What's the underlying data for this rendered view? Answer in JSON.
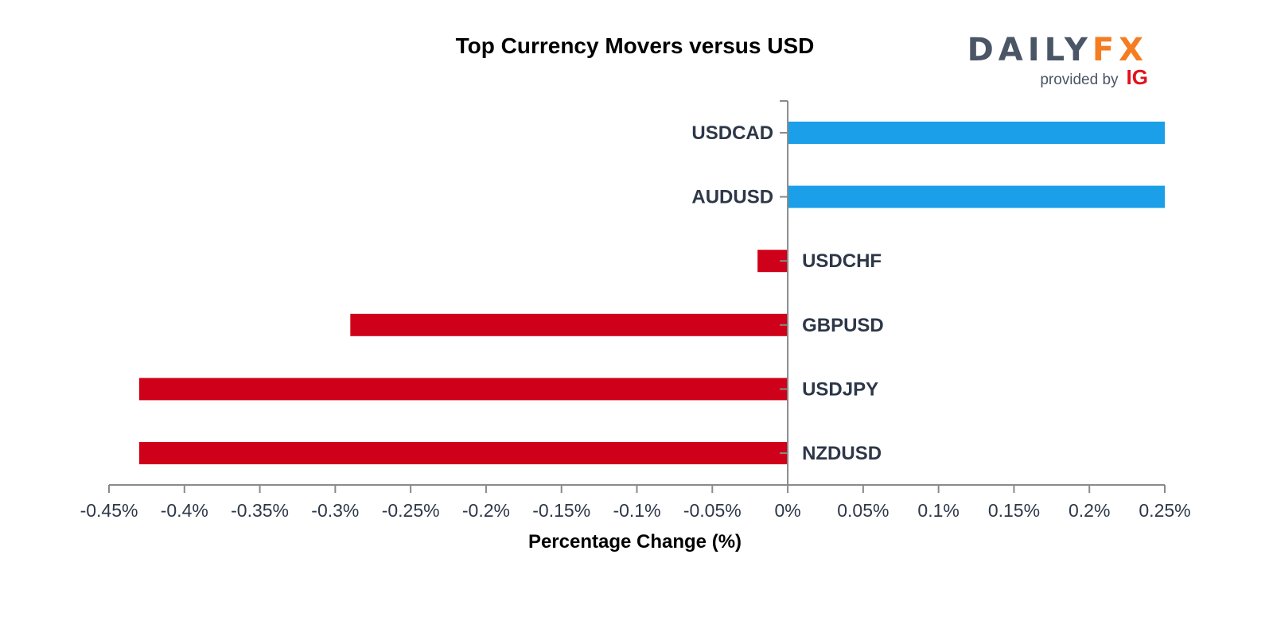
{
  "chart_data": {
    "type": "bar",
    "orientation": "horizontal",
    "title": "Top Currency Movers versus USD",
    "xlabel": "Percentage Change (%)",
    "ylabel": "",
    "xlim": [
      -0.45,
      0.25
    ],
    "categories": [
      "USDCAD",
      "AUDUSD",
      "USDCHF",
      "GBPUSD",
      "USDJPY",
      "NZDUSD"
    ],
    "values": [
      0.25,
      0.25,
      -0.02,
      -0.29,
      -0.43,
      -0.43
    ],
    "ticks": [
      -0.45,
      -0.4,
      -0.35,
      -0.3,
      -0.25,
      -0.2,
      -0.15,
      -0.1,
      -0.05,
      0,
      0.05,
      0.1,
      0.15,
      0.2,
      0.25
    ],
    "tick_labels": [
      "-0.45%",
      "-0.4%",
      "-0.35%",
      "-0.3%",
      "-0.25%",
      "-0.2%",
      "-0.15%",
      "-0.1%",
      "-0.05%",
      "0%",
      "0.05%",
      "0.1%",
      "0.15%",
      "0.2%",
      "0.25%"
    ],
    "grid": false,
    "colors": {
      "positive": "#1a9fe8",
      "negative": "#cf0019",
      "axis": "#8a8a8a"
    }
  },
  "logo": {
    "wordmark_left": "DAILY",
    "wordmark_right": "FX",
    "sub_text": "provided by",
    "sub_brand": "IG",
    "colors": {
      "left": "#4a5566",
      "right": "#f57c20",
      "brand": "#e3111b"
    }
  }
}
